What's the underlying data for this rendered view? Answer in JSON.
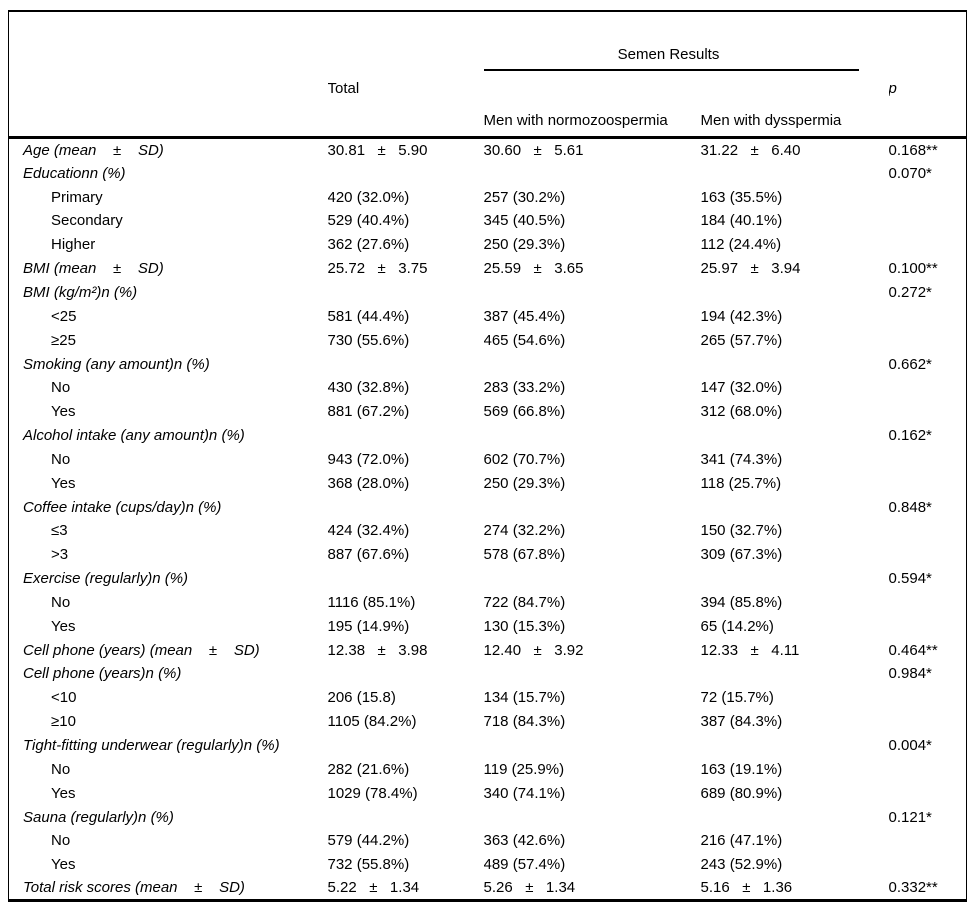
{
  "table": {
    "header": {
      "total": "Total",
      "semen_results": "Semen Results",
      "p": "p",
      "normozoospermia": "Men with normozoospermia",
      "dysspermia": "Men with dysspermia"
    },
    "rows": [
      {
        "label": "Age (mean    ±    SD)",
        "indent": false,
        "total": "30.81   ±   5.90",
        "normo": "30.60   ±   5.61",
        "dys": "31.22   ±   6.40",
        "p": "0.168**"
      },
      {
        "label": "Educationn (%)",
        "indent": false,
        "p": "0.070*"
      },
      {
        "label": "Primary",
        "indent": true,
        "total": "420 (32.0%)",
        "normo": "257 (30.2%)",
        "dys": "163 (35.5%)"
      },
      {
        "label": "Secondary",
        "indent": true,
        "total": "529 (40.4%)",
        "normo": "345 (40.5%)",
        "dys": "184 (40.1%)"
      },
      {
        "label": "Higher",
        "indent": true,
        "total": "362 (27.6%)",
        "normo": "250 (29.3%)",
        "dys": "112 (24.4%)"
      },
      {
        "label": "BMI (mean    ±    SD)",
        "indent": false,
        "total": "25.72   ±   3.75",
        "normo": "25.59   ±   3.65",
        "dys": "25.97   ±   3.94",
        "p": "0.100**"
      },
      {
        "label": "BMI (kg/m²)n (%)",
        "indent": false,
        "p": "0.272*"
      },
      {
        "label": "<25",
        "indent": true,
        "total": "581 (44.4%)",
        "normo": "387 (45.4%)",
        "dys": "194 (42.3%)"
      },
      {
        "label": "≥25",
        "indent": true,
        "total": "730 (55.6%)",
        "normo": "465 (54.6%)",
        "dys": "265 (57.7%)"
      },
      {
        "label": "Smoking (any amount)n (%)",
        "indent": false,
        "p": "0.662*"
      },
      {
        "label": "No",
        "indent": true,
        "total": "430 (32.8%)",
        "normo": "283 (33.2%)",
        "dys": "147 (32.0%)"
      },
      {
        "label": "Yes",
        "indent": true,
        "total": "881 (67.2%)",
        "normo": "569 (66.8%)",
        "dys": "312 (68.0%)"
      },
      {
        "label": "Alcohol intake (any amount)n (%)",
        "indent": false,
        "p": "0.162*"
      },
      {
        "label": "No",
        "indent": true,
        "total": "943 (72.0%)",
        "normo": "602 (70.7%)",
        "dys": "341 (74.3%)"
      },
      {
        "label": "Yes",
        "indent": true,
        "total": "368 (28.0%)",
        "normo": "250 (29.3%)",
        "dys": "118 (25.7%)"
      },
      {
        "label": "Coffee intake (cups/day)n (%)",
        "indent": false,
        "p": "0.848*"
      },
      {
        "label": "≤3",
        "indent": true,
        "total": "424 (32.4%)",
        "normo": "274 (32.2%)",
        "dys": "150 (32.7%)"
      },
      {
        "label": ">3",
        "indent": true,
        "total": "887 (67.6%)",
        "normo": "578 (67.8%)",
        "dys": "309 (67.3%)"
      },
      {
        "label": "Exercise (regularly)n (%)",
        "indent": false,
        "p": "0.594*"
      },
      {
        "label": "No",
        "indent": true,
        "total": "1116 (85.1%)",
        "normo": "722 (84.7%)",
        "dys": "394 (85.8%)"
      },
      {
        "label": "Yes",
        "indent": true,
        "total": "195 (14.9%)",
        "normo": "130 (15.3%)",
        "dys": "65 (14.2%)"
      },
      {
        "label": "Cell phone (years) (mean    ±    SD)",
        "indent": false,
        "total": "12.38   ±   3.98",
        "normo": "12.40   ±   3.92",
        "dys": "12.33   ±   4.11",
        "p": "0.464**"
      },
      {
        "label": "Cell phone (years)n (%)",
        "indent": false,
        "p": "0.984*"
      },
      {
        "label": "<10",
        "indent": true,
        "total": "206 (15.8)",
        "normo": "134 (15.7%)",
        "dys": "72 (15.7%)"
      },
      {
        "label": "≥10",
        "indent": true,
        "total": "1105 (84.2%)",
        "normo": "718 (84.3%)",
        "dys": "387 (84.3%)"
      },
      {
        "label": "Tight-fitting underwear (regularly)n (%)",
        "indent": false,
        "p": "0.004*"
      },
      {
        "label": "No",
        "indent": true,
        "total": "282 (21.6%)",
        "normo": "119 (25.9%)",
        "dys": "163 (19.1%)"
      },
      {
        "label": "Yes",
        "indent": true,
        "total": "1029 (78.4%)",
        "normo": "340 (74.1%)",
        "dys": "689 (80.9%)"
      },
      {
        "label": "Sauna (regularly)n (%)",
        "indent": false,
        "p": "0.121*"
      },
      {
        "label": "No",
        "indent": true,
        "total": "579 (44.2%)",
        "normo": "363 (42.6%)",
        "dys": "216 (47.1%)"
      },
      {
        "label": "Yes",
        "indent": true,
        "total": "732 (55.8%)",
        "normo": "489 (57.4%)",
        "dys": "243 (52.9%)"
      },
      {
        "label": "Total risk scores (mean    ±    SD)",
        "indent": false,
        "total": "5.22   ±   1.34",
        "normo": "5.26   ±   1.34",
        "dys": "5.16   ±   1.36",
        "p": "0.332**"
      }
    ]
  }
}
